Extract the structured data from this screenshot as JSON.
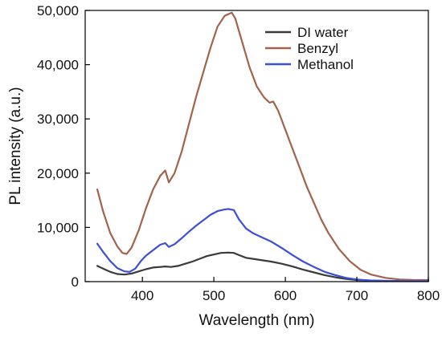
{
  "chart_data": {
    "type": "line",
    "title": "",
    "xlabel": "Wavelength (nm)",
    "ylabel": "PL intensity (a.u.)",
    "xlim": [
      320,
      800
    ],
    "ylim": [
      0,
      50000
    ],
    "x_ticks": [
      400,
      500,
      600,
      700,
      800
    ],
    "y_ticks": [
      0,
      10000,
      20000,
      30000,
      40000,
      50000
    ],
    "x_tick_labels": [
      "400",
      "500",
      "600",
      "700",
      "800"
    ],
    "y_tick_labels": [
      "0",
      "10,000",
      "20,000",
      "30,000",
      "40,000",
      "50,000"
    ],
    "grid": false,
    "legend_position": "top-right",
    "series": [
      {
        "name": "DI water",
        "color": "#3a3a3a",
        "x": [
          337,
          345,
          355,
          365,
          375,
          385,
          395,
          405,
          415,
          425,
          432,
          440,
          450,
          460,
          470,
          480,
          490,
          500,
          510,
          520,
          528,
          535,
          545,
          555,
          565,
          580,
          595,
          610,
          625,
          640,
          655,
          670,
          685,
          700,
          720,
          740,
          760,
          780,
          800
        ],
        "y": [
          2900,
          2400,
          1800,
          1400,
          1300,
          1500,
          1900,
          2300,
          2600,
          2700,
          2800,
          2700,
          2900,
          3300,
          3700,
          4200,
          4700,
          5000,
          5300,
          5350,
          5300,
          4900,
          4400,
          4200,
          4000,
          3700,
          3300,
          2800,
          2200,
          1700,
          1200,
          800,
          500,
          300,
          200,
          150,
          120,
          100,
          100
        ]
      },
      {
        "name": "Benzyl",
        "color": "#a3624a",
        "x": [
          337,
          345,
          355,
          365,
          372,
          378,
          385,
          395,
          405,
          415,
          425,
          432,
          437,
          445,
          455,
          465,
          475,
          485,
          495,
          505,
          515,
          520,
          525,
          530,
          540,
          550,
          560,
          570,
          578,
          583,
          590,
          600,
          610,
          620,
          630,
          640,
          650,
          660,
          675,
          690,
          705,
          720,
          740,
          760,
          780,
          800
        ],
        "y": [
          17000,
          13000,
          9000,
          6500,
          5300,
          5100,
          6300,
          9500,
          13500,
          17000,
          19500,
          20500,
          18300,
          20000,
          24000,
          29000,
          34000,
          38500,
          43000,
          47000,
          49000,
          49300,
          49600,
          48500,
          44000,
          39500,
          36000,
          34000,
          33000,
          33200,
          31500,
          28000,
          24500,
          21000,
          17500,
          14500,
          11500,
          9000,
          6000,
          3800,
          2200,
          1300,
          700,
          400,
          300,
          300
        ]
      },
      {
        "name": "Methanol",
        "color": "#3b4fd8",
        "x": [
          337,
          345,
          355,
          365,
          375,
          382,
          390,
          398,
          405,
          415,
          425,
          432,
          437,
          445,
          455,
          465,
          475,
          485,
          495,
          505,
          515,
          520,
          528,
          535,
          545,
          555,
          565,
          580,
          595,
          610,
          625,
          640,
          655,
          670,
          685,
          700,
          720,
          740,
          760,
          780,
          800
        ],
        "y": [
          7000,
          5500,
          3800,
          2500,
          1900,
          1800,
          2400,
          3800,
          4800,
          5800,
          6800,
          7100,
          6400,
          6900,
          8000,
          9200,
          10300,
          11300,
          12300,
          13000,
          13300,
          13400,
          13200,
          11500,
          9800,
          8900,
          8300,
          7400,
          6200,
          4900,
          3700,
          2700,
          1800,
          1200,
          700,
          400,
          200,
          130,
          100,
          100,
          100
        ]
      }
    ]
  }
}
